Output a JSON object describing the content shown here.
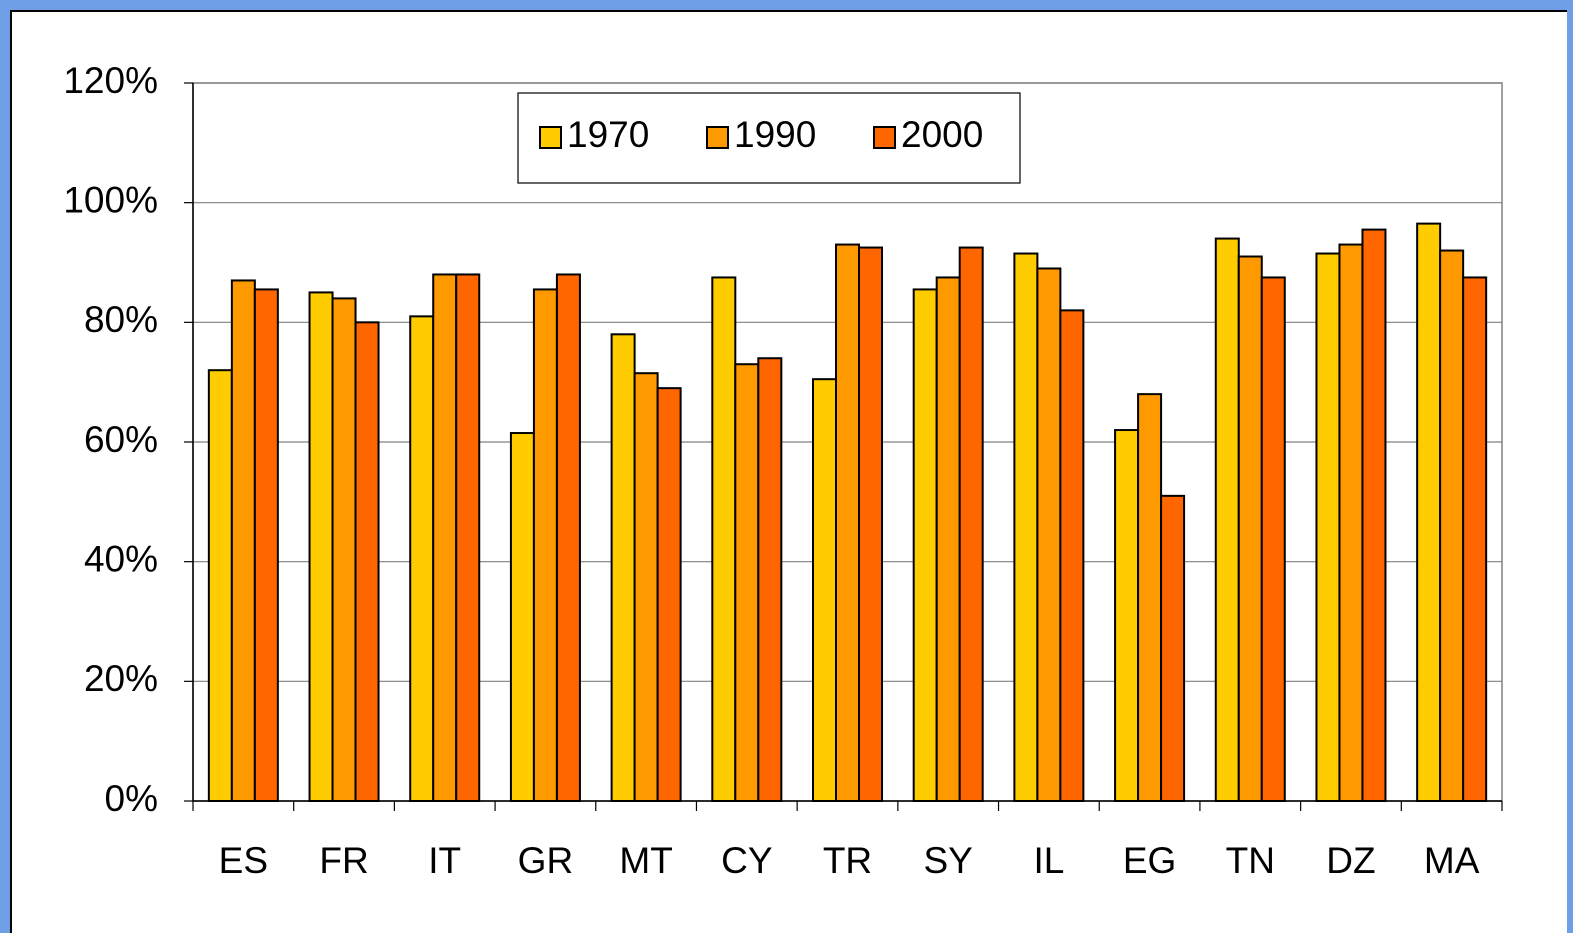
{
  "chart_data": {
    "type": "bar",
    "categories": [
      "ES",
      "FR",
      "IT",
      "GR",
      "MT",
      "CY",
      "TR",
      "SY",
      "IL",
      "EG",
      "TN",
      "DZ",
      "MA"
    ],
    "series": [
      {
        "name": "1970",
        "color": "#ffcc00",
        "values": [
          72,
          85,
          81,
          61.5,
          78,
          87.5,
          70.5,
          85.5,
          91.5,
          62,
          94,
          91.5,
          96.5
        ]
      },
      {
        "name": "1990",
        "color": "#ff9900",
        "values": [
          87,
          84,
          88,
          85.5,
          71.5,
          73,
          93,
          87.5,
          89,
          68,
          91,
          93,
          92
        ]
      },
      {
        "name": "2000",
        "color": "#ff6600",
        "values": [
          85.5,
          80,
          88,
          88,
          69,
          74,
          92.5,
          92.5,
          82,
          51,
          87.5,
          95.5,
          87.5
        ]
      }
    ],
    "ylim": [
      0,
      120
    ],
    "yticks": [
      {
        "value": 0,
        "label": "0%"
      },
      {
        "value": 20,
        "label": "20%"
      },
      {
        "value": 40,
        "label": "40%"
      },
      {
        "value": 60,
        "label": "60%"
      },
      {
        "value": 80,
        "label": "80%"
      },
      {
        "value": 100,
        "label": "100%"
      },
      {
        "value": 120,
        "label": "120%"
      }
    ],
    "grid": true,
    "legend": "top"
  }
}
